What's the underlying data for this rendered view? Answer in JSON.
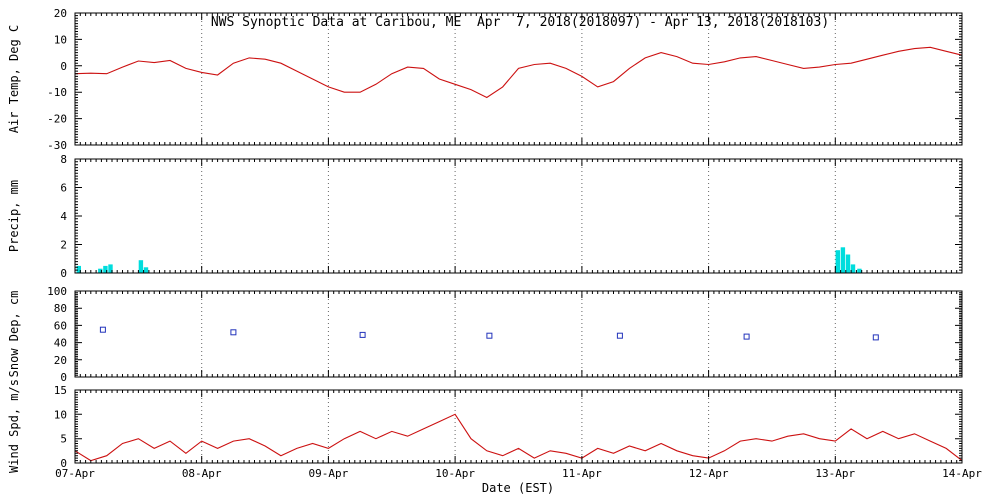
{
  "title": "NWS Synoptic Data at Caribou, ME  Apr  7, 2018(2018097) - Apr 13, 2018(2018103)",
  "xlabel": "Date (EST)",
  "x_ticks": [
    "07-Apr",
    "08-Apr",
    "09-Apr",
    "10-Apr",
    "11-Apr",
    "12-Apr",
    "13-Apr",
    "14-Apr"
  ],
  "x_range_days": [
    0,
    7
  ],
  "colors": {
    "temp_line": "#cc1111",
    "wind_line": "#cc1111",
    "precip_bar": "#00dddd",
    "snow_marker": "#2233bb",
    "frame": "#000000",
    "grid_dots": "#666666",
    "text": "#000000",
    "background": "#ffffff"
  },
  "chart_data": [
    {
      "type": "line",
      "name": "air-temp",
      "ylabel": "Air Temp, Deg C",
      "ylim": [
        -30,
        20
      ],
      "yticks": [
        20,
        10,
        0,
        -10,
        -20,
        -30
      ],
      "yminor_step": 1,
      "step_hours": 3,
      "values": [
        -3,
        -2.8,
        -3,
        -0.5,
        1.8,
        1.2,
        2,
        -1,
        -2.5,
        -3.5,
        1,
        3,
        2.5,
        1,
        -2,
        -5,
        -8,
        -10,
        -10,
        -7,
        -3,
        -0.5,
        -1,
        -5,
        -7,
        -9,
        -12,
        -8,
        -1,
        0.5,
        1,
        -1,
        -4,
        -8,
        -6,
        -1,
        3,
        5,
        3.5,
        1,
        0.5,
        1.5,
        3,
        3.5,
        2,
        0.5,
        -1,
        -0.5,
        0.5,
        1,
        2.5,
        4,
        5.5,
        6.5,
        7,
        5.5,
        4
      ]
    },
    {
      "type": "bar",
      "name": "precip",
      "ylabel": "Precip, mm",
      "ylim": [
        0,
        8
      ],
      "yticks": [
        8,
        6,
        4,
        2,
        0
      ],
      "yminor_step": 0.2,
      "points": [
        {
          "t": 0.03,
          "v": 0.5
        },
        {
          "t": 0.2,
          "v": 0.3
        },
        {
          "t": 0.24,
          "v": 0.5
        },
        {
          "t": 0.28,
          "v": 0.6
        },
        {
          "t": 0.52,
          "v": 0.9
        },
        {
          "t": 0.56,
          "v": 0.4
        },
        {
          "t": 6.02,
          "v": 1.6
        },
        {
          "t": 6.06,
          "v": 1.8
        },
        {
          "t": 6.1,
          "v": 1.3
        },
        {
          "t": 6.14,
          "v": 0.6
        },
        {
          "t": 6.19,
          "v": 0.3
        }
      ]
    },
    {
      "type": "scatter",
      "name": "snow-depth",
      "ylabel": "Snow Dep, cm",
      "ylim": [
        0,
        100
      ],
      "yticks": [
        100,
        80,
        60,
        40,
        20,
        0
      ],
      "yminor_step": 2,
      "points": [
        {
          "t": 0.22,
          "v": 55
        },
        {
          "t": 1.25,
          "v": 52
        },
        {
          "t": 2.27,
          "v": 49
        },
        {
          "t": 3.27,
          "v": 48
        },
        {
          "t": 4.3,
          "v": 48
        },
        {
          "t": 5.3,
          "v": 47
        },
        {
          "t": 6.32,
          "v": 46
        }
      ]
    },
    {
      "type": "line",
      "name": "wind-speed",
      "ylabel": "Wind Spd, m/s",
      "ylim": [
        0,
        15
      ],
      "yticks": [
        15,
        10,
        5,
        0
      ],
      "yminor_step": 0.5,
      "step_hours": 3,
      "values": [
        2.5,
        0.5,
        1.5,
        4,
        5,
        3,
        4.5,
        2,
        4.5,
        3,
        4.5,
        5,
        3.5,
        1.5,
        3,
        4,
        3,
        5,
        6.5,
        5,
        6.5,
        5.5,
        7,
        8.5,
        10,
        5,
        2.5,
        1.5,
        3,
        1,
        2.5,
        2,
        1,
        3,
        2,
        3.5,
        2.5,
        4,
        2.5,
        1.5,
        1,
        2.5,
        4.5,
        5,
        4.5,
        5.5,
        6,
        5,
        4.5,
        7,
        5,
        6.5,
        5,
        6,
        4.5,
        3,
        0.5
      ]
    }
  ]
}
